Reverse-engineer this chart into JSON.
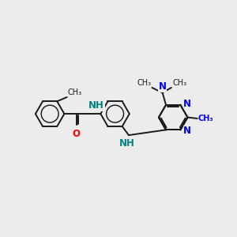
{
  "bg_color": "#ececec",
  "bond_color": "#1a1a1a",
  "nitrogen_color": "#0000ff",
  "oxygen_color": "#ff0000",
  "nh_color": "#008080",
  "bond_width": 1.4,
  "font_size": 8.5,
  "fig_size": [
    3.0,
    3.0
  ],
  "dpi": 100,
  "xlim": [
    0,
    10
  ],
  "ylim": [
    1,
    9
  ]
}
